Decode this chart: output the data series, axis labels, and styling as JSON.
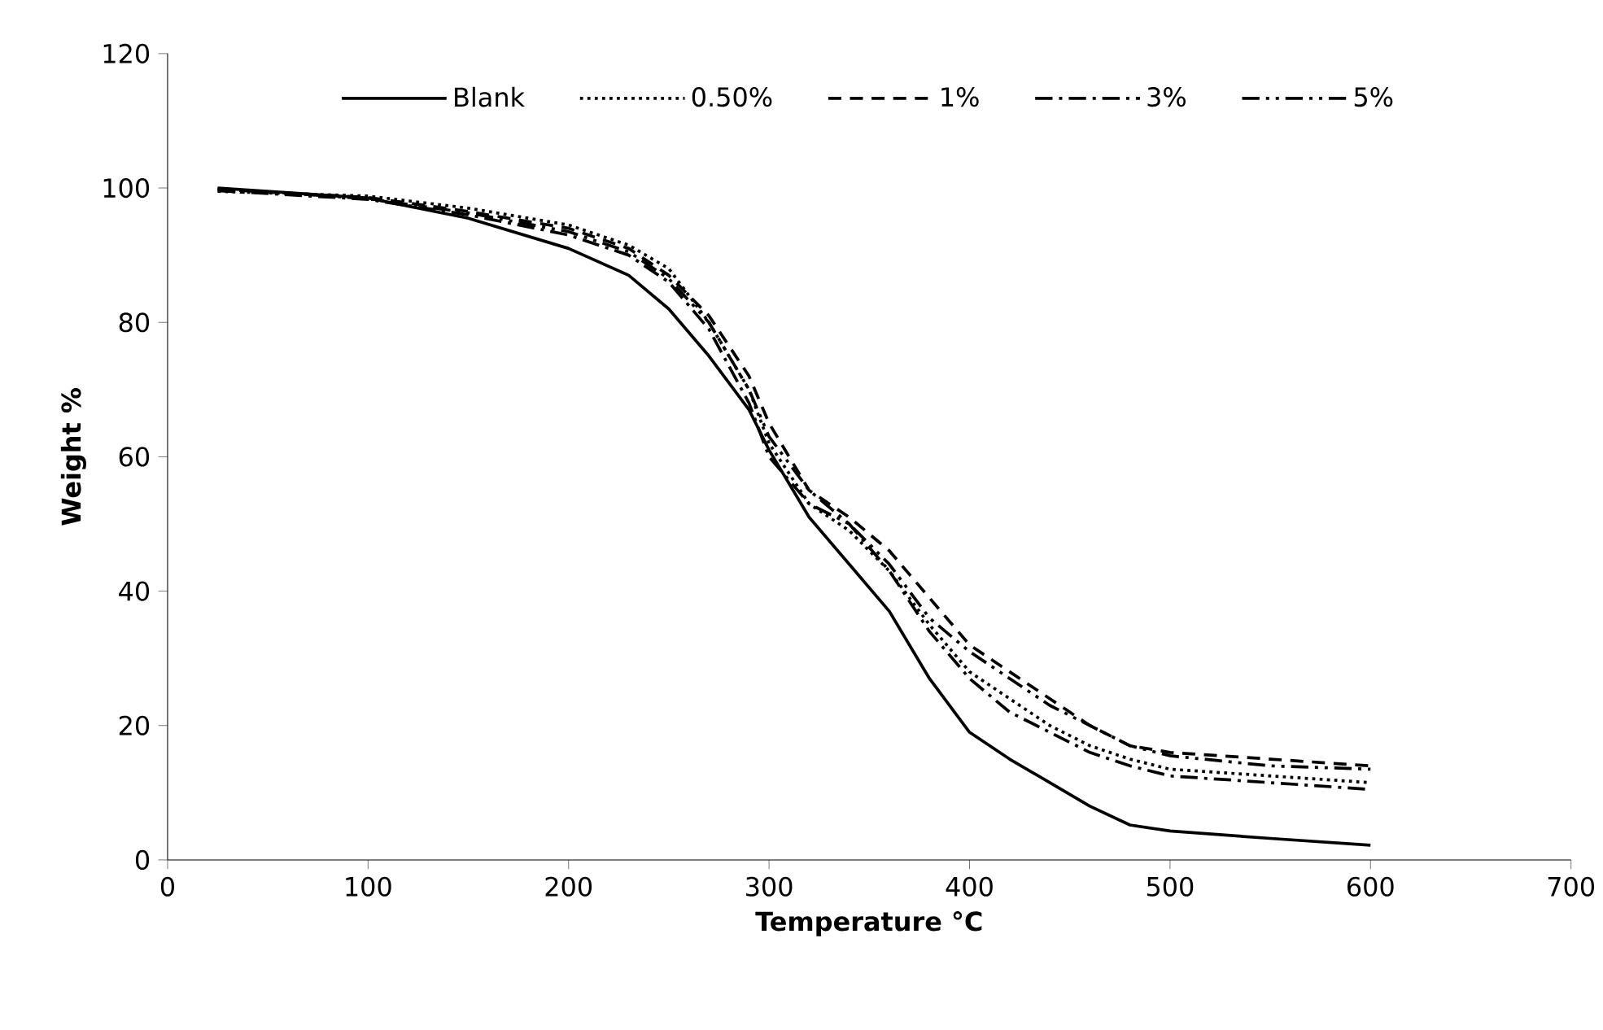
{
  "chart_data": {
    "type": "line",
    "xlabel": "Temperature °C",
    "ylabel": "Weight  %",
    "xlim": [
      0,
      700
    ],
    "ylim": [
      0,
      120
    ],
    "xticks": [
      0,
      100,
      200,
      300,
      400,
      500,
      600,
      700
    ],
    "yticks": [
      0,
      20,
      40,
      60,
      80,
      100,
      120
    ],
    "legend": "top",
    "grid": false,
    "marker": "none",
    "series": [
      {
        "name": "Blank",
        "color": "#000000",
        "line_style": "solid",
        "x": [
          25,
          100,
          150,
          200,
          230,
          250,
          270,
          290,
          300,
          320,
          340,
          360,
          380,
          400,
          420,
          440,
          460,
          480,
          500,
          550,
          600
        ],
        "values": [
          100,
          98.5,
          95.5,
          91,
          87,
          82,
          75,
          67,
          61,
          51,
          44,
          37,
          27,
          19,
          15,
          11.5,
          8,
          5.2,
          4.3,
          3.2,
          2.2
        ]
      },
      {
        "name": "0.50%",
        "color": "#000000",
        "line_style": "dotted",
        "x": [
          25,
          100,
          150,
          200,
          230,
          250,
          270,
          290,
          300,
          320,
          340,
          360,
          380,
          400,
          420,
          440,
          460,
          480,
          500,
          550,
          600
        ],
        "values": [
          99.5,
          98.8,
          97,
          94.5,
          91.5,
          88,
          80,
          70,
          62,
          53,
          49,
          43,
          35,
          28,
          24,
          20,
          17,
          15,
          13.5,
          12.5,
          11.5
        ]
      },
      {
        "name": "1%",
        "color": "#000000",
        "line_style": "dashed",
        "x": [
          25,
          100,
          150,
          200,
          230,
          250,
          270,
          290,
          300,
          320,
          340,
          360,
          380,
          400,
          420,
          440,
          460,
          480,
          500,
          550,
          600
        ],
        "values": [
          99.8,
          98.6,
          96.5,
          94,
          91,
          87,
          81,
          72,
          65,
          55,
          51,
          46,
          39,
          32,
          28,
          24,
          20,
          17,
          16,
          15,
          14
        ]
      },
      {
        "name": "3%",
        "color": "#000000",
        "line_style": "dashdot",
        "x": [
          25,
          100,
          150,
          200,
          230,
          250,
          270,
          290,
          300,
          320,
          340,
          360,
          380,
          400,
          420,
          440,
          460,
          480,
          500,
          550,
          600
        ],
        "values": [
          99.6,
          98.3,
          96,
          93,
          90,
          86,
          79,
          68,
          60,
          53,
          50,
          43,
          34,
          27,
          22,
          19,
          16,
          14,
          12.5,
          11.5,
          10.5
        ]
      },
      {
        "name": "5%",
        "color": "#000000",
        "line_style": "dashdotdot",
        "x": [
          25,
          100,
          150,
          200,
          230,
          250,
          270,
          290,
          300,
          320,
          340,
          360,
          380,
          400,
          420,
          440,
          460,
          480,
          500,
          550,
          600
        ],
        "values": [
          99.9,
          98.4,
          96.3,
          93.5,
          90.5,
          86.5,
          80,
          70,
          63,
          55,
          50,
          44,
          36,
          31,
          27,
          23,
          20,
          17,
          15.5,
          14,
          13.5
        ]
      }
    ]
  }
}
